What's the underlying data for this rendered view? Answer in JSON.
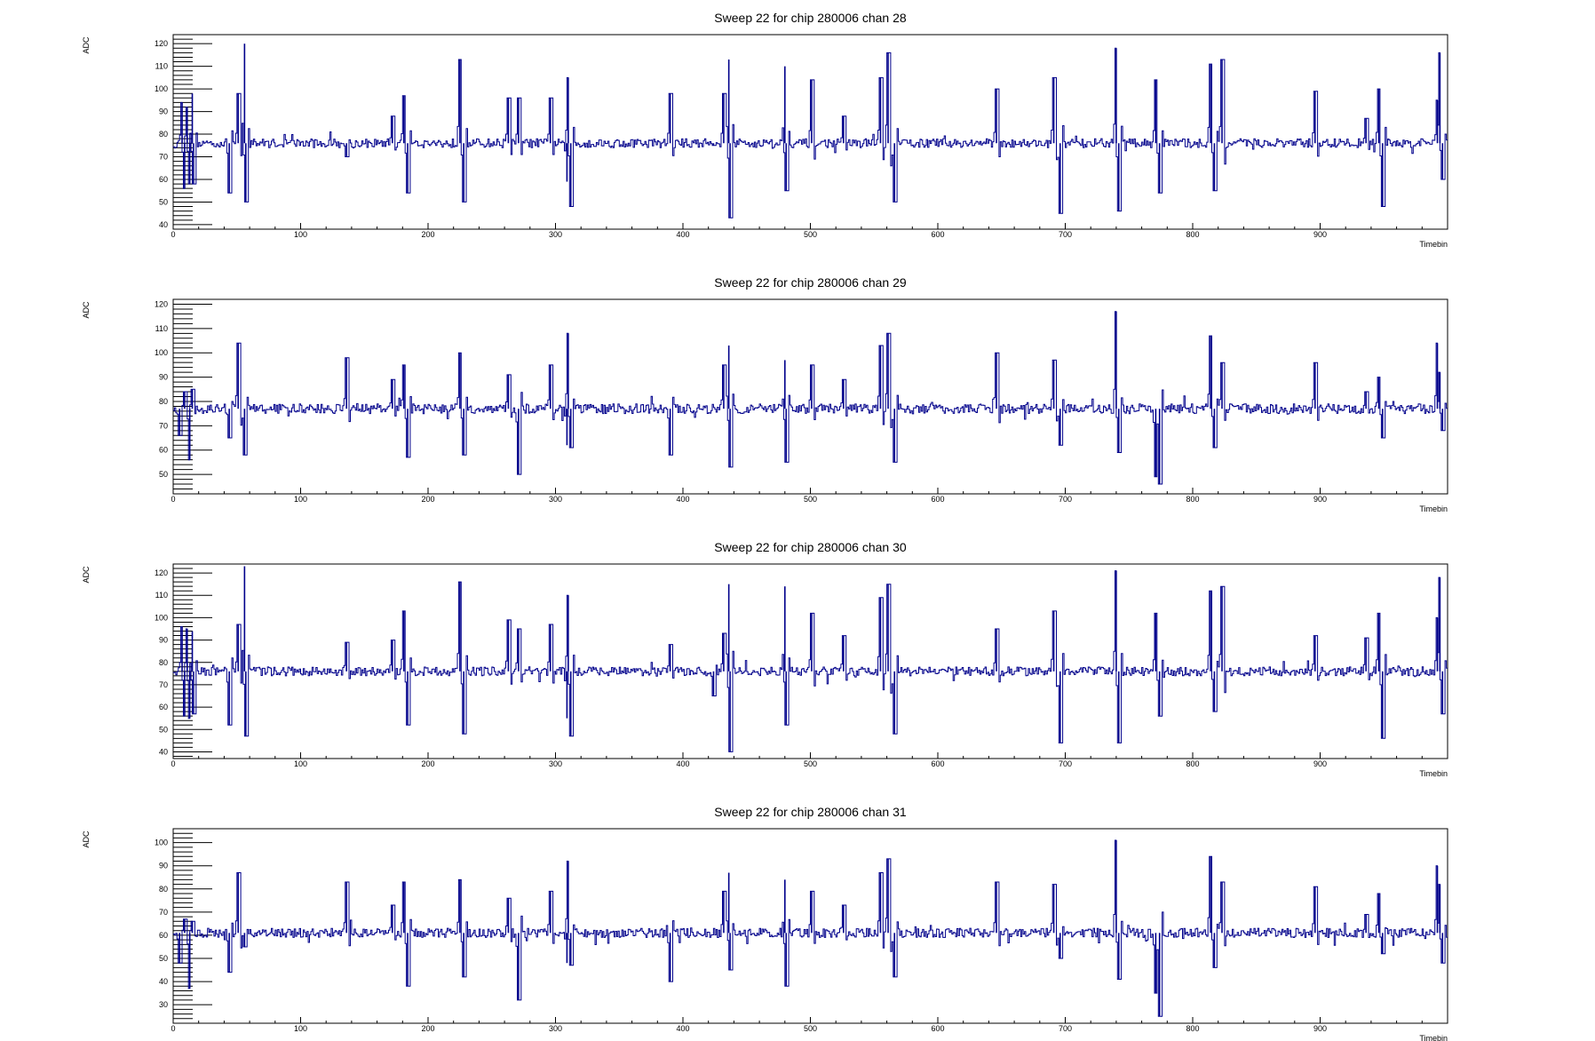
{
  "colors": {
    "series": "#00008b",
    "frame": "#000000",
    "background": "#ffffff"
  },
  "chart_data": [
    {
      "type": "line",
      "title": "Sweep 22 for chip 280006 chan 28",
      "xlabel": "Timebin",
      "ylabel": "ADC",
      "xlim": [
        0,
        1000
      ],
      "ylim": [
        38,
        124
      ],
      "xticks": [
        0,
        100,
        200,
        300,
        400,
        500,
        600,
        700,
        800,
        900
      ],
      "yticks": [
        40,
        50,
        60,
        70,
        80,
        90,
        100,
        110,
        120
      ],
      "baseline": 76,
      "spikes": [
        [
          6,
          94
        ],
        [
          8,
          56
        ],
        [
          10,
          92
        ],
        [
          12,
          58
        ],
        [
          14,
          98
        ],
        [
          15,
          58
        ],
        [
          43,
          54
        ],
        [
          50,
          98
        ],
        [
          55,
          120
        ],
        [
          56,
          50
        ],
        [
          135,
          70
        ],
        [
          171,
          88
        ],
        [
          180,
          97
        ],
        [
          183,
          54
        ],
        [
          224,
          113
        ],
        [
          227,
          50
        ],
        [
          262,
          96
        ],
        [
          270,
          96
        ],
        [
          295,
          96
        ],
        [
          308,
          59
        ],
        [
          309,
          105
        ],
        [
          311,
          48
        ],
        [
          389,
          98
        ],
        [
          423,
          75
        ],
        [
          431,
          98
        ],
        [
          435,
          113
        ],
        [
          436,
          43
        ],
        [
          479,
          110
        ],
        [
          480,
          55
        ],
        [
          500,
          104
        ],
        [
          525,
          88
        ],
        [
          554,
          105
        ],
        [
          560,
          116
        ],
        [
          565,
          50
        ],
        [
          645,
          100
        ],
        [
          690,
          105
        ],
        [
          695,
          45
        ],
        [
          739,
          118
        ],
        [
          741,
          46
        ],
        [
          770,
          104
        ],
        [
          773,
          54
        ],
        [
          813,
          111
        ],
        [
          816,
          55
        ],
        [
          822,
          113
        ],
        [
          895,
          99
        ],
        [
          935,
          87
        ],
        [
          945,
          100
        ],
        [
          948,
          48
        ],
        [
          991,
          95
        ],
        [
          993,
          116
        ],
        [
          995,
          60
        ]
      ]
    },
    {
      "type": "line",
      "title": "Sweep 22 for chip 280006 chan 29",
      "xlabel": "Timebin",
      "ylabel": "ADC",
      "xlim": [
        0,
        1000
      ],
      "ylim": [
        42,
        122
      ],
      "xticks": [
        0,
        100,
        200,
        300,
        400,
        500,
        600,
        700,
        800,
        900
      ],
      "yticks": [
        50,
        60,
        70,
        80,
        90,
        100,
        110,
        120
      ],
      "baseline": 77,
      "spikes": [
        [
          4,
          66
        ],
        [
          8,
          84
        ],
        [
          12,
          56
        ],
        [
          14,
          85
        ],
        [
          43,
          65
        ],
        [
          50,
          104
        ],
        [
          55,
          58
        ],
        [
          135,
          98
        ],
        [
          171,
          89
        ],
        [
          180,
          95
        ],
        [
          183,
          57
        ],
        [
          224,
          100
        ],
        [
          227,
          58
        ],
        [
          262,
          91
        ],
        [
          270,
          50
        ],
        [
          295,
          95
        ],
        [
          308,
          62
        ],
        [
          309,
          108
        ],
        [
          311,
          61
        ],
        [
          389,
          58
        ],
        [
          431,
          95
        ],
        [
          435,
          103
        ],
        [
          436,
          53
        ],
        [
          479,
          97
        ],
        [
          480,
          55
        ],
        [
          500,
          95
        ],
        [
          525,
          89
        ],
        [
          554,
          103
        ],
        [
          560,
          108
        ],
        [
          565,
          55
        ],
        [
          645,
          100
        ],
        [
          690,
          97
        ],
        [
          695,
          62
        ],
        [
          739,
          117
        ],
        [
          741,
          59
        ],
        [
          770,
          49
        ],
        [
          773,
          46
        ],
        [
          813,
          107
        ],
        [
          816,
          61
        ],
        [
          822,
          96
        ],
        [
          895,
          96
        ],
        [
          935,
          84
        ],
        [
          945,
          90
        ],
        [
          948,
          65
        ],
        [
          991,
          104
        ],
        [
          993,
          92
        ],
        [
          995,
          68
        ]
      ]
    },
    {
      "type": "line",
      "title": "Sweep 22 for chip 280006 chan 30",
      "xlabel": "Timebin",
      "ylabel": "ADC",
      "xlim": [
        0,
        1000
      ],
      "ylim": [
        37,
        124
      ],
      "xticks": [
        0,
        100,
        200,
        300,
        400,
        500,
        600,
        700,
        800,
        900
      ],
      "yticks": [
        40,
        50,
        60,
        70,
        80,
        90,
        100,
        110,
        120
      ],
      "baseline": 76,
      "spikes": [
        [
          6,
          96
        ],
        [
          8,
          56
        ],
        [
          10,
          95
        ],
        [
          12,
          55
        ],
        [
          14,
          94
        ],
        [
          15,
          57
        ],
        [
          43,
          52
        ],
        [
          50,
          97
        ],
        [
          55,
          123
        ],
        [
          56,
          47
        ],
        [
          135,
          89
        ],
        [
          171,
          90
        ],
        [
          180,
          103
        ],
        [
          183,
          52
        ],
        [
          224,
          116
        ],
        [
          227,
          48
        ],
        [
          262,
          99
        ],
        [
          270,
          95
        ],
        [
          295,
          97
        ],
        [
          308,
          55
        ],
        [
          309,
          110
        ],
        [
          311,
          47
        ],
        [
          389,
          88
        ],
        [
          423,
          65
        ],
        [
          431,
          93
        ],
        [
          435,
          115
        ],
        [
          436,
          40
        ],
        [
          479,
          114
        ],
        [
          480,
          52
        ],
        [
          500,
          102
        ],
        [
          525,
          92
        ],
        [
          554,
          109
        ],
        [
          560,
          115
        ],
        [
          565,
          48
        ],
        [
          645,
          95
        ],
        [
          690,
          103
        ],
        [
          695,
          44
        ],
        [
          739,
          121
        ],
        [
          741,
          44
        ],
        [
          770,
          102
        ],
        [
          773,
          56
        ],
        [
          813,
          112
        ],
        [
          816,
          58
        ],
        [
          822,
          114
        ],
        [
          895,
          92
        ],
        [
          935,
          91
        ],
        [
          945,
          102
        ],
        [
          948,
          46
        ],
        [
          991,
          100
        ],
        [
          993,
          118
        ],
        [
          995,
          57
        ]
      ]
    },
    {
      "type": "line",
      "title": "Sweep 22 for chip 280006 chan 31",
      "xlabel": "Timebin",
      "ylabel": "ADC",
      "xlim": [
        0,
        1000
      ],
      "ylim": [
        22,
        106
      ],
      "xticks": [
        0,
        100,
        200,
        300,
        400,
        500,
        600,
        700,
        800,
        900
      ],
      "yticks": [
        30,
        40,
        50,
        60,
        70,
        80,
        90,
        100
      ],
      "baseline": 61,
      "spikes": [
        [
          4,
          48
        ],
        [
          8,
          67
        ],
        [
          12,
          37
        ],
        [
          14,
          66
        ],
        [
          43,
          44
        ],
        [
          50,
          87
        ],
        [
          55,
          55
        ],
        [
          135,
          83
        ],
        [
          171,
          73
        ],
        [
          180,
          83
        ],
        [
          183,
          38
        ],
        [
          224,
          84
        ],
        [
          227,
          42
        ],
        [
          262,
          76
        ],
        [
          270,
          32
        ],
        [
          295,
          79
        ],
        [
          308,
          48
        ],
        [
          309,
          92
        ],
        [
          311,
          47
        ],
        [
          389,
          40
        ],
        [
          431,
          79
        ],
        [
          435,
          87
        ],
        [
          436,
          45
        ],
        [
          479,
          84
        ],
        [
          480,
          38
        ],
        [
          500,
          79
        ],
        [
          525,
          73
        ],
        [
          554,
          87
        ],
        [
          560,
          93
        ],
        [
          565,
          42
        ],
        [
          645,
          83
        ],
        [
          690,
          82
        ],
        [
          695,
          50
        ],
        [
          739,
          101
        ],
        [
          741,
          41
        ],
        [
          770,
          35
        ],
        [
          773,
          25
        ],
        [
          813,
          94
        ],
        [
          816,
          46
        ],
        [
          822,
          83
        ],
        [
          895,
          81
        ],
        [
          935,
          69
        ],
        [
          945,
          78
        ],
        [
          948,
          52
        ],
        [
          991,
          90
        ],
        [
          993,
          82
        ],
        [
          995,
          48
        ]
      ]
    }
  ]
}
